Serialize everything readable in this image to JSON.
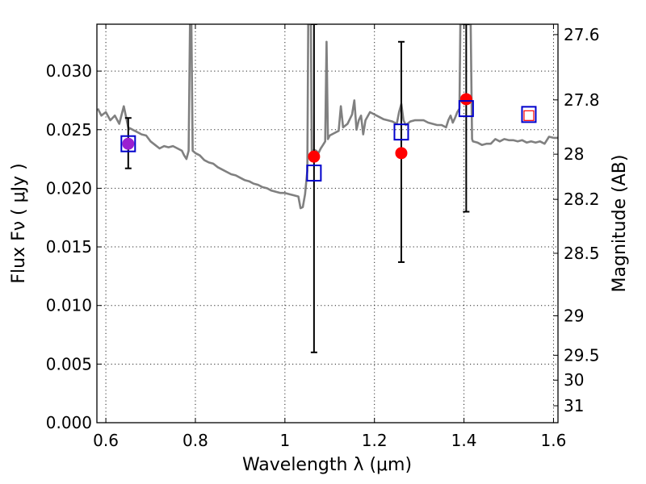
{
  "chart_data": {
    "type": "scatter",
    "title": "",
    "xlabel": "Wavelength  λ (μm)",
    "ylabel": "Flux  Fν  ( μJy )",
    "ylabel_right": "Magnitude (AB)",
    "xlim": [
      0.58,
      1.61
    ],
    "ylim": [
      0.0,
      0.034
    ],
    "grid": true,
    "x_ticks": [
      0.6,
      0.8,
      1.0,
      1.2,
      1.4,
      1.6
    ],
    "x_tick_labels": [
      "0.6",
      "0.8",
      "1",
      "1.2",
      "1.4",
      "1.6"
    ],
    "y_ticks": [
      0.0,
      0.005,
      0.01,
      0.015,
      0.02,
      0.025,
      0.03
    ],
    "y_tick_labels": [
      "0.000",
      "0.005",
      "0.010",
      "0.015",
      "0.020",
      "0.025",
      "0.030"
    ],
    "right_ticks": [
      27.6,
      27.8,
      28,
      28.2,
      28.5,
      29,
      29.5,
      30,
      31
    ],
    "right_tick_labels": [
      "27.6",
      "27.8",
      "28",
      "28.2",
      "28.5",
      "29",
      "29.5",
      "30",
      "31"
    ],
    "colors": {
      "sed": "#808080",
      "observed": "#ff0000",
      "model_photometry": "#0000cc",
      "errorbar": "#000000",
      "overlap": "#9b1fd0"
    },
    "series": [
      {
        "kind": "line",
        "points": [
          [
            0.582,
            0.0268
          ],
          [
            0.59,
            0.0262
          ],
          [
            0.6,
            0.0265
          ],
          [
            0.61,
            0.0258
          ],
          [
            0.62,
            0.0262
          ],
          [
            0.63,
            0.0255
          ],
          [
            0.64,
            0.027
          ],
          [
            0.65,
            0.0252
          ],
          [
            0.66,
            0.025
          ],
          [
            0.67,
            0.0248
          ],
          [
            0.68,
            0.0246
          ],
          [
            0.69,
            0.0245
          ],
          [
            0.7,
            0.024
          ],
          [
            0.71,
            0.0237
          ],
          [
            0.72,
            0.0234
          ],
          [
            0.73,
            0.0236
          ],
          [
            0.74,
            0.0235
          ],
          [
            0.75,
            0.0236
          ],
          [
            0.76,
            0.0234
          ],
          [
            0.77,
            0.0232
          ],
          [
            0.775,
            0.0228
          ],
          [
            0.78,
            0.0225
          ],
          [
            0.785,
            0.0232
          ],
          [
            0.788,
            0.034
          ],
          [
            0.791,
            0.034
          ],
          [
            0.794,
            0.0232
          ],
          [
            0.8,
            0.023
          ],
          [
            0.81,
            0.0228
          ],
          [
            0.82,
            0.0224
          ],
          [
            0.83,
            0.0222
          ],
          [
            0.84,
            0.0221
          ],
          [
            0.85,
            0.0218
          ],
          [
            0.86,
            0.0216
          ],
          [
            0.87,
            0.0214
          ],
          [
            0.88,
            0.0212
          ],
          [
            0.89,
            0.0211
          ],
          [
            0.9,
            0.0209
          ],
          [
            0.91,
            0.0207
          ],
          [
            0.92,
            0.0206
          ],
          [
            0.93,
            0.0204
          ],
          [
            0.94,
            0.0203
          ],
          [
            0.95,
            0.0201
          ],
          [
            0.96,
            0.02
          ],
          [
            0.97,
            0.0198
          ],
          [
            0.98,
            0.0197
          ],
          [
            0.99,
            0.0196
          ],
          [
            1.0,
            0.0196
          ],
          [
            1.01,
            0.0195
          ],
          [
            1.02,
            0.0194
          ],
          [
            1.03,
            0.0193
          ],
          [
            1.035,
            0.0183
          ],
          [
            1.04,
            0.0184
          ],
          [
            1.045,
            0.0195
          ],
          [
            1.05,
            0.0215
          ],
          [
            1.052,
            0.034
          ],
          [
            1.058,
            0.034
          ],
          [
            1.06,
            0.0228
          ],
          [
            1.065,
            0.0233
          ],
          [
            1.07,
            0.0232
          ],
          [
            1.075,
            0.023
          ],
          [
            1.08,
            0.0234
          ],
          [
            1.085,
            0.0237
          ],
          [
            1.09,
            0.024
          ],
          [
            1.093,
            0.0325
          ],
          [
            1.096,
            0.0242
          ],
          [
            1.1,
            0.0245
          ],
          [
            1.11,
            0.0247
          ],
          [
            1.12,
            0.0249
          ],
          [
            1.125,
            0.027
          ],
          [
            1.13,
            0.0252
          ],
          [
            1.14,
            0.0255
          ],
          [
            1.15,
            0.0263
          ],
          [
            1.155,
            0.0275
          ],
          [
            1.16,
            0.025
          ],
          [
            1.165,
            0.0258
          ],
          [
            1.17,
            0.0262
          ],
          [
            1.175,
            0.0246
          ],
          [
            1.18,
            0.0258
          ],
          [
            1.19,
            0.0265
          ],
          [
            1.2,
            0.0263
          ],
          [
            1.21,
            0.0261
          ],
          [
            1.22,
            0.0259
          ],
          [
            1.23,
            0.0258
          ],
          [
            1.24,
            0.0257
          ],
          [
            1.25,
            0.0255
          ],
          [
            1.255,
            0.0265
          ],
          [
            1.26,
            0.0272
          ],
          [
            1.265,
            0.0258
          ],
          [
            1.27,
            0.0254
          ],
          [
            1.28,
            0.0257
          ],
          [
            1.29,
            0.0258
          ],
          [
            1.3,
            0.0258
          ],
          [
            1.31,
            0.0258
          ],
          [
            1.32,
            0.0256
          ],
          [
            1.33,
            0.0255
          ],
          [
            1.34,
            0.0254
          ],
          [
            1.35,
            0.0254
          ],
          [
            1.36,
            0.0252
          ],
          [
            1.365,
            0.0258
          ],
          [
            1.37,
            0.0262
          ],
          [
            1.375,
            0.0256
          ],
          [
            1.38,
            0.026
          ],
          [
            1.385,
            0.0265
          ],
          [
            1.39,
            0.0268
          ],
          [
            1.392,
            0.034
          ],
          [
            1.415,
            0.034
          ],
          [
            1.418,
            0.0242
          ],
          [
            1.42,
            0.024
          ],
          [
            1.43,
            0.0239
          ],
          [
            1.44,
            0.0237
          ],
          [
            1.45,
            0.0238
          ],
          [
            1.46,
            0.0238
          ],
          [
            1.47,
            0.0242
          ],
          [
            1.48,
            0.024
          ],
          [
            1.49,
            0.0242
          ],
          [
            1.5,
            0.0241
          ],
          [
            1.51,
            0.0241
          ],
          [
            1.52,
            0.024
          ],
          [
            1.53,
            0.0241
          ],
          [
            1.54,
            0.0239
          ],
          [
            1.55,
            0.024
          ],
          [
            1.56,
            0.0239
          ],
          [
            1.57,
            0.024
          ],
          [
            1.58,
            0.0238
          ],
          [
            1.59,
            0.0244
          ],
          [
            1.6,
            0.0243
          ],
          [
            1.61,
            0.0243
          ]
        ]
      },
      {
        "kind": "points",
        "x": [
          0.65,
          1.065,
          1.26,
          1.405
        ],
        "y": [
          0.0238,
          0.0227,
          0.023,
          0.0276
        ],
        "err_low": [
          0.0217,
          0.006,
          0.0137,
          0.018
        ],
        "err_high": [
          0.026,
          0.034,
          0.0325,
          0.034
        ]
      },
      {
        "kind": "squares",
        "x": [
          0.65,
          1.065,
          1.26,
          1.405,
          1.545
        ],
        "y": [
          0.0238,
          0.0213,
          0.0248,
          0.0268,
          0.0263
        ]
      },
      {
        "kind": "small_square",
        "x": [
          1.545
        ],
        "y": [
          0.0262
        ]
      }
    ]
  }
}
